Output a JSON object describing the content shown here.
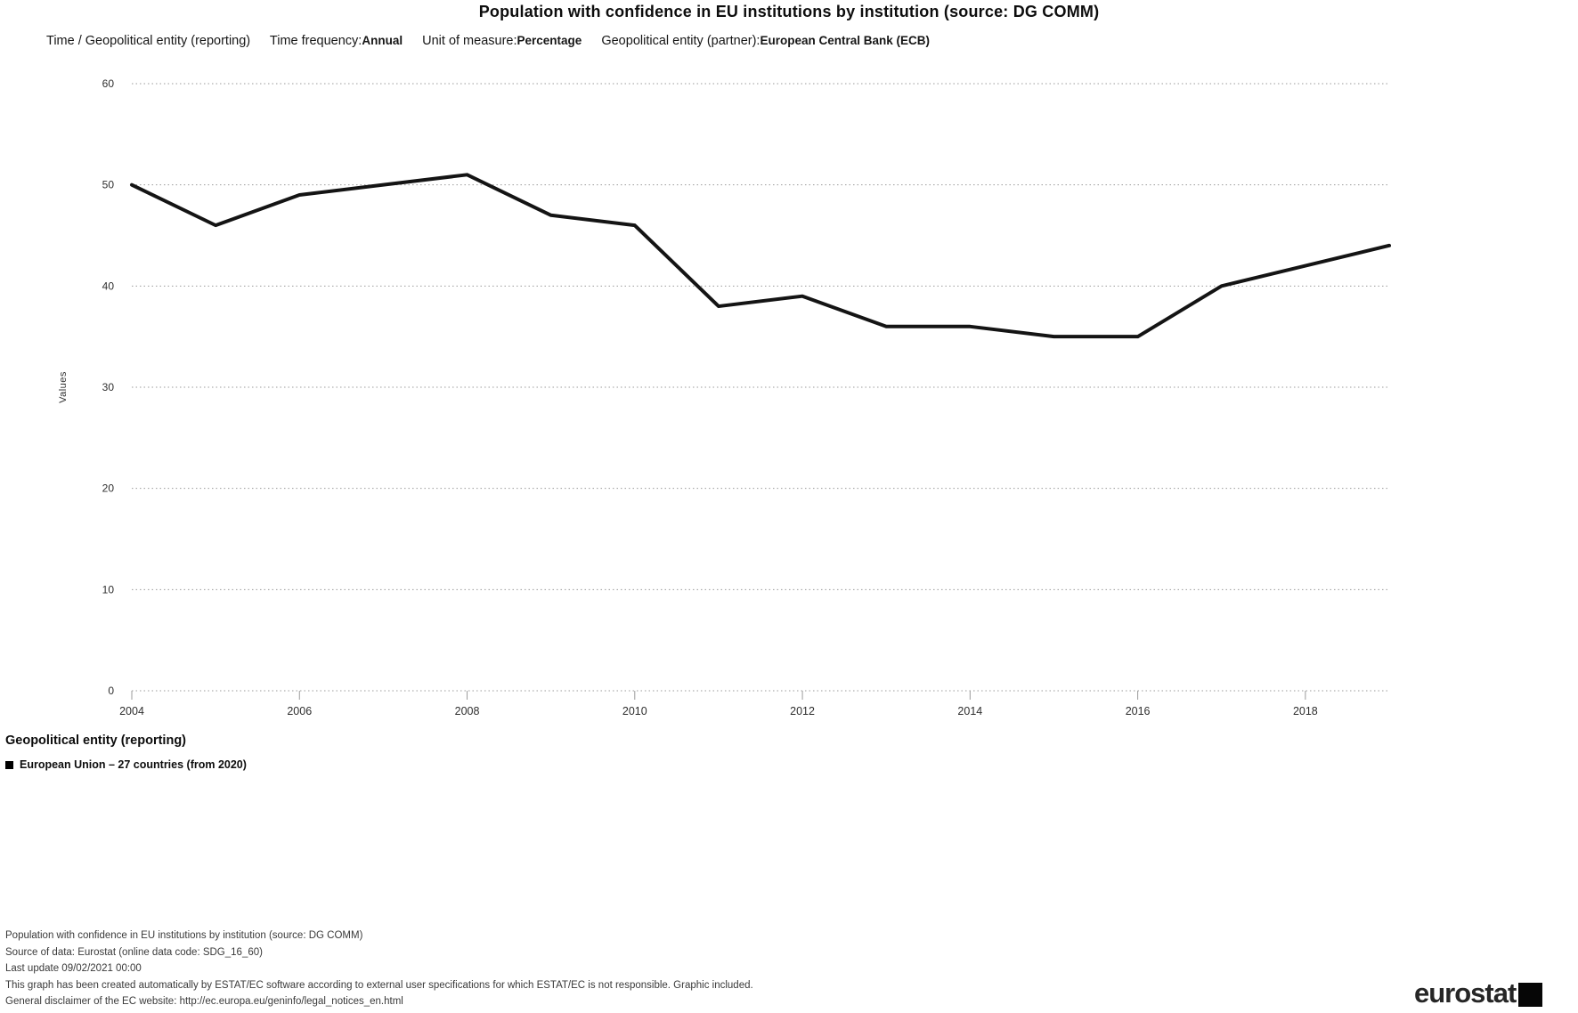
{
  "title": "Population with confidence in EU institutions by institution (source: DG COMM)",
  "filters": {
    "dimension_label": "Time / Geopolitical entity (reporting)",
    "time_frequency_label": "Time frequency:",
    "time_frequency_value": "Annual",
    "unit_label": "Unit of measure:",
    "unit_value": "Percentage",
    "partner_label": "Geopolitical entity (partner):",
    "partner_value": "European Central Bank (ECB)"
  },
  "chart_data": {
    "type": "line",
    "title": "Population with confidence in EU institutions by institution (source: DG COMM)",
    "x": [
      2004,
      2005,
      2006,
      2007,
      2008,
      2009,
      2010,
      2011,
      2012,
      2013,
      2014,
      2015,
      2016,
      2017,
      2018,
      2019
    ],
    "series": [
      {
        "name": "European Union – 27 countries (from 2020)",
        "values": [
          50,
          46,
          49,
          50,
          51,
          47,
          46,
          38,
          39,
          36,
          36,
          35,
          35,
          40,
          42,
          44
        ]
      }
    ],
    "xlabel": "",
    "ylabel": "Values",
    "ylim": [
      0,
      60
    ],
    "yticks": [
      0,
      10,
      20,
      30,
      40,
      50,
      60
    ],
    "xticks": [
      2004,
      2006,
      2008,
      2010,
      2012,
      2014,
      2016,
      2018
    ],
    "grid": true,
    "gridline_style": "dotted",
    "line_color": "#141414",
    "grid_color": "#9b9b9b",
    "label_color": "#2e2e2e",
    "legend_position": "bottom-left"
  },
  "legend": {
    "heading": "Geopolitical entity (reporting)",
    "items": [
      {
        "marker": "square",
        "color": "#000000",
        "label": "European Union – 27 countries (from 2020)"
      }
    ]
  },
  "footer": {
    "lines": [
      "Population with confidence in EU institutions by institution (source: DG COMM)",
      "Source of data: Eurostat (online data code: SDG_16_60)",
      "Last update 09/02/2021 00:00",
      "This graph has been created automatically by ESTAT/EC software according to external user specifications for which ESTAT/EC is not responsible. Graphic included.",
      "General disclaimer of the EC website: http://ec.europa.eu/geninfo/legal_notices_en.html"
    ]
  },
  "logo": {
    "text": "eurostat"
  }
}
